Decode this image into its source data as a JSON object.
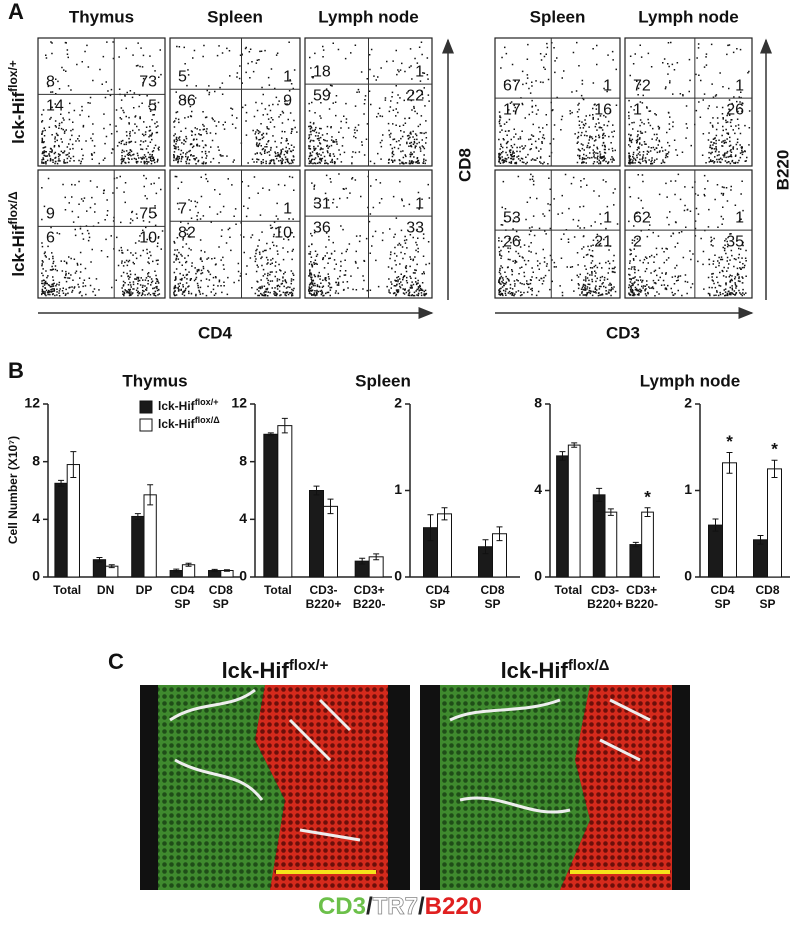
{
  "panel_a": {
    "label": "A",
    "columns": [
      "Thymus",
      "Spleen",
      "Lymph node",
      "Spleen",
      "Lymph node"
    ],
    "rows": [
      {
        "base": "lck-Hif",
        "sup": "flox/+"
      },
      {
        "base": "lck-Hif",
        "sup": "flox/Δ"
      }
    ],
    "quadrants": [
      [
        [
          8,
          73,
          14,
          5
        ],
        [
          5,
          1,
          86,
          9
        ],
        [
          18,
          1,
          59,
          22
        ],
        [
          67,
          1,
          17,
          16
        ],
        [
          72,
          1,
          1,
          26
        ]
      ],
      [
        [
          9,
          75,
          6,
          10
        ],
        [
          7,
          1,
          82,
          10
        ],
        [
          31,
          1,
          36,
          33
        ],
        [
          53,
          1,
          26,
          21
        ],
        [
          62,
          1,
          2,
          35
        ]
      ]
    ],
    "axes": {
      "left_x": "CD4",
      "left_y": "CD8",
      "right_x": "CD3",
      "right_y": "B220"
    }
  },
  "panel_b": {
    "label": "B"
  },
  "chart_data": [
    {
      "type": "bar",
      "title": "Thymus",
      "y_label": "Cell Number (X10⁷)",
      "categories": [
        [
          "Total"
        ],
        [
          "DN"
        ],
        [
          "DP"
        ],
        [
          "CD4",
          "SP"
        ],
        [
          "CD8",
          "SP"
        ]
      ],
      "ylim": [
        0,
        12
      ],
      "yticks": [
        0,
        4,
        8,
        12
      ],
      "legend": "upper right",
      "series": [
        {
          "name": "lck-Hif",
          "name_superscript": "flox/+",
          "color": "#1a1a1a",
          "values": [
            6.5,
            1.2,
            4.2,
            0.45,
            0.45
          ],
          "errors": [
            0.2,
            0.15,
            0.2,
            0.1,
            0.08
          ]
        },
        {
          "name": "lck-Hif",
          "name_superscript": "flox/Δ",
          "color": "#ffffff",
          "values": [
            7.8,
            0.75,
            5.7,
            0.85,
            0.45
          ],
          "errors": [
            0.9,
            0.1,
            0.7,
            0.1,
            0.05
          ]
        }
      ]
    },
    {
      "type": "bar",
      "title": "Spleen",
      "categories": [
        [
          "Total"
        ],
        [
          "CD3-",
          "B220+"
        ],
        [
          "CD3+",
          "B220-"
        ]
      ],
      "ylim": [
        0,
        12
      ],
      "yticks": [
        0,
        4,
        8,
        12
      ],
      "series": [
        {
          "color": "#1a1a1a",
          "values": [
            9.9,
            6.0,
            1.1
          ],
          "errors": [
            0.1,
            0.3,
            0.2
          ]
        },
        {
          "color": "#ffffff",
          "values": [
            10.5,
            4.9,
            1.4
          ],
          "errors": [
            0.5,
            0.5,
            0.2
          ]
        }
      ]
    },
    {
      "type": "bar",
      "categories": [
        [
          "CD4",
          "SP"
        ],
        [
          "CD8",
          "SP"
        ]
      ],
      "ylim": [
        0,
        2
      ],
      "yticks": [
        0,
        1,
        2
      ],
      "series": [
        {
          "color": "#1a1a1a",
          "values": [
            0.57,
            0.35
          ],
          "errors": [
            0.15,
            0.08
          ]
        },
        {
          "color": "#ffffff",
          "values": [
            0.73,
            0.5
          ],
          "errors": [
            0.07,
            0.08
          ]
        }
      ]
    },
    {
      "type": "bar",
      "title": "Lymph node",
      "categories": [
        [
          "Total"
        ],
        [
          "CD3-",
          "B220+"
        ],
        [
          "CD3+",
          "B220-"
        ]
      ],
      "ylim": [
        0,
        8
      ],
      "yticks": [
        0,
        4,
        8
      ],
      "significant": [
        false,
        false,
        true
      ],
      "significance_mark": "*",
      "series": [
        {
          "color": "#1a1a1a",
          "values": [
            5.6,
            3.8,
            1.5
          ],
          "errors": [
            0.2,
            0.3,
            0.1
          ]
        },
        {
          "color": "#ffffff",
          "values": [
            6.1,
            3.0,
            3.0
          ],
          "errors": [
            0.1,
            0.15,
            0.2
          ]
        }
      ]
    },
    {
      "type": "bar",
      "categories": [
        [
          "CD4",
          "SP"
        ],
        [
          "CD8",
          "SP"
        ]
      ],
      "ylim": [
        0,
        2
      ],
      "yticks": [
        0,
        1,
        2
      ],
      "significant": [
        true,
        true
      ],
      "significance_mark": "*",
      "series": [
        {
          "color": "#1a1a1a",
          "values": [
            0.6,
            0.43
          ],
          "errors": [
            0.07,
            0.05
          ]
        },
        {
          "color": "#ffffff",
          "values": [
            1.32,
            1.25
          ],
          "errors": [
            0.12,
            0.1
          ]
        }
      ]
    }
  ],
  "panel_c": {
    "label": "C",
    "images": [
      {
        "base": "lck-Hif",
        "sup": "flox/+"
      },
      {
        "base": "lck-Hif",
        "sup": "flox/Δ"
      }
    ],
    "legend": [
      {
        "text": "CD3",
        "color": "#6cc04a"
      },
      {
        "text": "/",
        "color": "#222222"
      },
      {
        "text": "TR7",
        "color": "#ffffff"
      },
      {
        "text": "/",
        "color": "#222222"
      },
      {
        "text": "B220",
        "color": "#e02020"
      }
    ]
  }
}
